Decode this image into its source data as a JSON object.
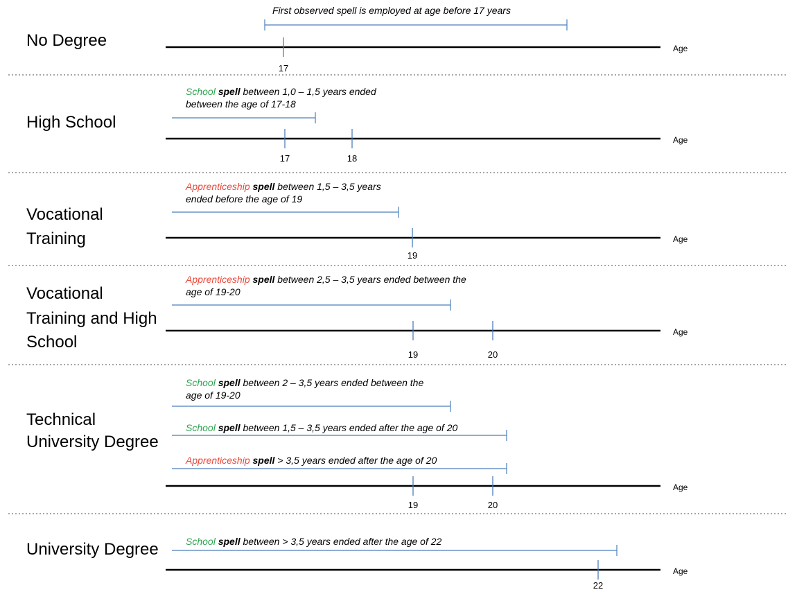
{
  "colors": {
    "axis": "#000000",
    "bar": "#4a7ebb",
    "separator": "#a6a6a6",
    "school_word": "#2ea44f",
    "apprenticeship_word": "#e8473a"
  },
  "axis_label": "Age",
  "sections": [
    {
      "id": "no-degree",
      "label": [
        "No Degree"
      ],
      "bars": [
        {
          "caption": [
            [
              {
                "t": "First observed spell is employed at age before 17 years",
                "s": "plain"
              }
            ]
          ],
          "start_marker": true
        }
      ],
      "ticks": [
        "17"
      ]
    },
    {
      "id": "high-school",
      "label": [
        "High School"
      ],
      "bars": [
        {
          "caption": [
            [
              {
                "t": "School",
                "s": "school"
              },
              {
                "t": " spell",
                "s": "bold"
              },
              {
                "t": " between 1,0 – 1,5 years ended",
                "s": "plain"
              }
            ],
            [
              {
                "t": "between the age of 17-18",
                "s": "plain"
              }
            ]
          ]
        }
      ],
      "ticks": [
        "17",
        "18"
      ]
    },
    {
      "id": "vocational-training",
      "label": [
        "Vocational",
        "Training"
      ],
      "bars": [
        {
          "caption": [
            [
              {
                "t": "Apprenticeship",
                "s": "app"
              },
              {
                "t": " spell",
                "s": "bold"
              },
              {
                "t": " between 1,5 – 3,5 years",
                "s": "plain"
              }
            ],
            [
              {
                "t": "ended before the age of 19",
                "s": "plain"
              }
            ]
          ]
        }
      ],
      "ticks": [
        "19"
      ]
    },
    {
      "id": "vocational-training-high-school",
      "label": [
        "Vocational",
        "Training and High",
        "School"
      ],
      "bars": [
        {
          "caption": [
            [
              {
                "t": "Apprenticeship",
                "s": "app"
              },
              {
                "t": " spell",
                "s": "bold"
              },
              {
                "t": " between 2,5 – 3,5 years ended between the",
                "s": "plain"
              }
            ],
            [
              {
                "t": "age of 19-20",
                "s": "plain"
              }
            ]
          ]
        }
      ],
      "ticks": [
        "19",
        "20"
      ]
    },
    {
      "id": "technical-university-degree",
      "label": [
        "Technical",
        "University Degree"
      ],
      "bars": [
        {
          "caption": [
            [
              {
                "t": "School",
                "s": "school"
              },
              {
                "t": " spell",
                "s": "bold"
              },
              {
                "t": " between 2 – 3,5 years ended between the",
                "s": "plain"
              }
            ],
            [
              {
                "t": "age of 19-20",
                "s": "plain"
              }
            ]
          ]
        },
        {
          "caption": [
            [
              {
                "t": "School ",
                "s": "school"
              },
              {
                "t": " spell",
                "s": "bold"
              },
              {
                "t": " between 1,5 – 3,5 years ended after the age of 20",
                "s": "plain"
              }
            ]
          ]
        },
        {
          "caption": [
            [
              {
                "t": "Apprenticeship",
                "s": "app"
              },
              {
                "t": " spell",
                "s": "bold"
              },
              {
                "t": " > 3,5 years ended after the age of 20",
                "s": "plain"
              }
            ]
          ]
        }
      ],
      "ticks": [
        "19",
        "20"
      ]
    },
    {
      "id": "university-degree",
      "label": [
        "University Degree"
      ],
      "bars": [
        {
          "caption": [
            [
              {
                "t": "School",
                "s": "school"
              },
              {
                "t": " spell",
                "s": "bold"
              },
              {
                "t": " between > 3,5 years ended after the age of 22",
                "s": "plain"
              }
            ]
          ]
        }
      ],
      "ticks": [
        "22"
      ]
    }
  ]
}
